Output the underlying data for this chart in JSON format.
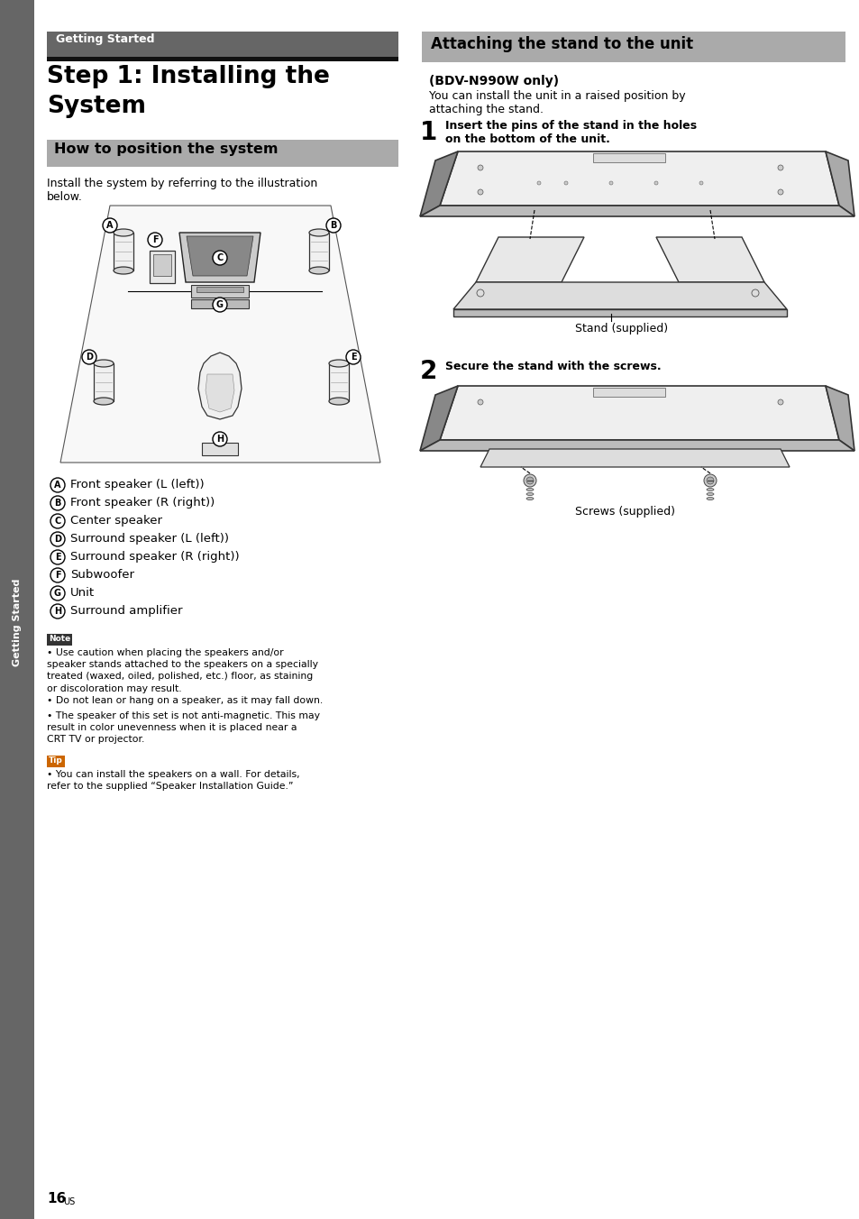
{
  "page_bg": "#ffffff",
  "sidebar_bg": "#666666",
  "sidebar_text": "Getting Started",
  "left_header_bg": "#666666",
  "left_header_text": "Getting Started",
  "left_title_line1": "Step 1: Installing the",
  "left_title_line2": "System",
  "subsection_bg": "#aaaaaa",
  "subsection_text": "How to position the system",
  "intro_text_line1": "Install the system by referring to the illustration",
  "intro_text_line2": "below.",
  "right_header_bg": "#aaaaaa",
  "right_header_text": "Attaching the stand to the unit",
  "bdv_title": "(BDV-N990W only)",
  "bdv_text_line1": "You can install the unit in a raised position by",
  "bdv_text_line2": "attaching the stand.",
  "step1_num": "1",
  "step1_text_line1": "Insert the pins of the stand in the holes",
  "step1_text_line2": "on the bottom of the unit.",
  "stand_label": "Stand (supplied)",
  "step2_num": "2",
  "step2_text": "Secure the stand with the screws.",
  "screws_label": "Screws (supplied)",
  "legend_items": [
    {
      "sym": "A",
      "text": "Front speaker (L (left))"
    },
    {
      "sym": "B",
      "text": "Front speaker (R (right))"
    },
    {
      "sym": "C",
      "text": "Center speaker"
    },
    {
      "sym": "D",
      "text": "Surround speaker (L (left))"
    },
    {
      "sym": "E",
      "text": "Surround speaker (R (right))"
    },
    {
      "sym": "F",
      "text": "Subwoofer"
    },
    {
      "sym": "G",
      "text": "Unit"
    },
    {
      "sym": "H",
      "text": "Surround amplifier"
    }
  ],
  "note_label": "Note",
  "note_bg": "#333333",
  "note_items": [
    "Use caution when placing the speakers and/or\nspeaker stands attached to the speakers on a specially\ntreated (waxed, oiled, polished, etc.) floor, as staining\nor discoloration may result.",
    "Do not lean or hang on a speaker, as it may fall down.",
    "The speaker of this set is not anti-magnetic. This may\nresult in color unevenness when it is placed near a\nCRT TV or projector."
  ],
  "tip_label": "Tip",
  "tip_bg": "#cc6600",
  "tip_items": [
    "You can install the speakers on a wall. For details,\nrefer to the supplied “Speaker Installation Guide.”"
  ],
  "page_num": "16",
  "page_sup": "US"
}
